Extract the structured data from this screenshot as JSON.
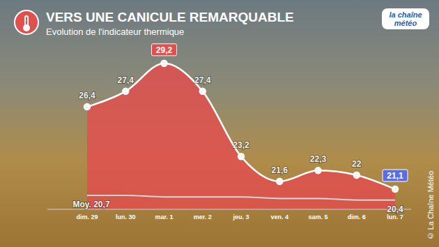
{
  "chart_data": {
    "type": "area",
    "title": "VERS UNE CANICULE REMARQUABLE",
    "subtitle": "Evolution de l'indicateur thermique",
    "logo": "la chaîne météo",
    "credit": "© La Chaîne Météo",
    "categories": [
      "dim. 29",
      "lun. 30",
      "mar. 1",
      "mer. 2",
      "jeu. 3",
      "ven. 4",
      "sam. 5",
      "dim. 6",
      "lun. 7"
    ],
    "series": [
      {
        "type": "area",
        "color": "#e0504f",
        "marker": "circle",
        "values": [
          26.4,
          27.4,
          29.2,
          27.4,
          23.2,
          21.6,
          22.3,
          22,
          21.1
        ],
        "value_labels": [
          "26,4",
          "27,4",
          "29,2",
          "27,4",
          "23,2",
          "21,6",
          "22,3",
          "22",
          "21,1"
        ]
      },
      {
        "type": "line",
        "color": "#d6d6d6",
        "values": [
          20.7,
          20.7,
          20.6,
          20.6,
          20.6,
          20.5,
          20.5,
          20.4,
          20.4
        ],
        "value_labels": [
          "Moy. 20,7",
          null,
          null,
          null,
          null,
          null,
          null,
          null,
          "20,4"
        ]
      }
    ],
    "data_labels": true,
    "ylim": [
      19.8,
      30
    ],
    "tick_labels": "x",
    "grid": false
  }
}
